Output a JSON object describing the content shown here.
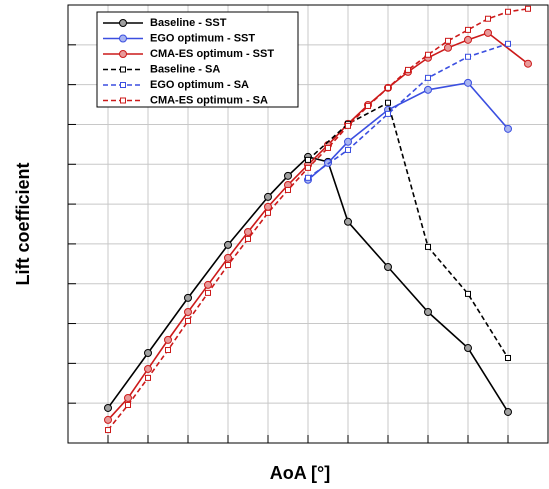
{
  "chart_data": {
    "type": "line",
    "xlabel": "AoA [°]",
    "ylabel": "Lift coefficient",
    "xlim": [
      0,
      24
    ],
    "ylim": [
      0,
      22
    ],
    "xticks": [
      0,
      2,
      4,
      6,
      8,
      10,
      12,
      14,
      16,
      18,
      20,
      22,
      24
    ],
    "yticks": [
      0,
      2,
      4,
      6,
      8,
      10,
      12,
      14,
      16,
      18,
      20,
      22
    ],
    "grid": true,
    "legend": "upper left",
    "series": [
      {
        "name": "Baseline - SST",
        "color": "#000000",
        "marker": "circle",
        "marker_color": "#a0a0a0",
        "dash": false,
        "x": [
          2,
          4,
          6,
          8,
          10,
          11,
          12,
          13,
          14,
          16,
          18,
          20,
          22
        ],
        "values": [
          1.76,
          4.52,
          7.29,
          9.95,
          12.36,
          13.42,
          14.37,
          14.12,
          11.11,
          8.84,
          6.58,
          4.77,
          1.56
        ]
      },
      {
        "name": "EGO optimum - SST",
        "color": "#3b4fe0",
        "marker": "circle",
        "marker_color": "#a8b4f0",
        "dash": false,
        "x": [
          12,
          13,
          14,
          16,
          18,
          20,
          22
        ],
        "values": [
          13.22,
          14.07,
          15.13,
          16.73,
          17.74,
          18.09,
          15.78
        ]
      },
      {
        "name": "CMA-ES optimum - SST",
        "color": "#cc1a1a",
        "marker": "circle",
        "marker_color": "#e89a9a",
        "dash": false,
        "x": [
          2,
          3,
          4,
          5,
          6,
          7,
          8,
          9,
          10,
          11,
          12,
          13,
          14,
          15,
          16,
          17,
          18,
          19,
          20,
          21,
          23
        ],
        "values": [
          1.16,
          2.26,
          3.72,
          5.18,
          6.58,
          7.94,
          9.3,
          10.6,
          11.86,
          12.96,
          13.97,
          14.97,
          16.03,
          16.98,
          17.84,
          18.64,
          19.35,
          19.85,
          20.25,
          20.6,
          19.05
        ]
      },
      {
        "name": "Baseline - SA",
        "color": "#000000",
        "marker": "square",
        "marker_color": "#ffffff",
        "dash": true,
        "x": [
          12,
          14,
          16,
          18,
          20,
          22
        ],
        "values": [
          14.22,
          16.03,
          17.09,
          9.85,
          7.49,
          4.27
        ]
      },
      {
        "name": "EGO optimum - SA",
        "color": "#3b4fe0",
        "marker": "square",
        "marker_color": "#ffffff",
        "dash": true,
        "x": [
          12,
          14,
          16,
          18,
          20,
          22
        ],
        "values": [
          13.32,
          14.72,
          16.53,
          18.34,
          19.4,
          20.05
        ]
      },
      {
        "name": "CMA-ES optimum - SA",
        "color": "#cc1a1a",
        "marker": "square",
        "marker_color": "#ffffff",
        "dash": true,
        "x": [
          2,
          3,
          4,
          5,
          6,
          7,
          8,
          9,
          10,
          11,
          12,
          13,
          14,
          15,
          16,
          17,
          18,
          19,
          20,
          21,
          22,
          23
        ],
        "values": [
          0.65,
          1.91,
          3.27,
          4.67,
          6.13,
          7.54,
          8.94,
          10.25,
          11.56,
          12.71,
          13.82,
          14.82,
          15.93,
          16.93,
          17.84,
          18.74,
          19.5,
          20.2,
          20.75,
          21.31,
          21.66,
          21.81
        ]
      }
    ]
  }
}
